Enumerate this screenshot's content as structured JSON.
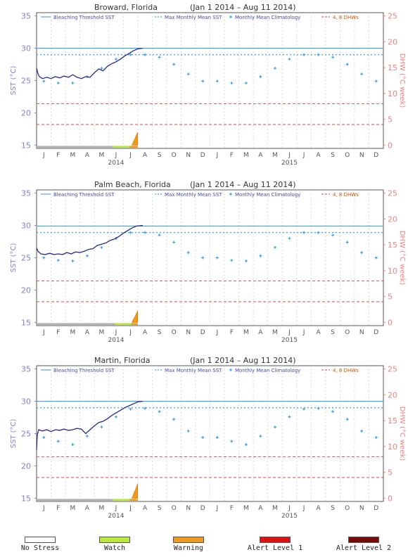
{
  "chart_data": [
    {
      "type": "line",
      "title": "Broward, Florida",
      "date_range": "(Jan 1 2014 – Aug 11 2014)",
      "ylabel": "SST (°C)",
      "ylabel_right": "DHW (°C week)",
      "ylim": [
        14.5,
        35.5
      ],
      "yticks": [
        15,
        20,
        25,
        30,
        35
      ],
      "y2lim": [
        0,
        25
      ],
      "y2ticks": [
        0,
        5,
        10,
        15,
        20,
        25
      ],
      "month_labels": [
        "J",
        "F",
        "M",
        "A",
        "M",
        "J",
        "J",
        "A",
        "S",
        "O",
        "N",
        "D",
        "J",
        "F",
        "M",
        "A",
        "M",
        "J",
        "J",
        "A",
        "S",
        "O",
        "N",
        "D"
      ],
      "year_labels": [
        "2014",
        "2015"
      ],
      "legend": [
        "Bleaching Threshold SST",
        "Max Monthly Mean SST",
        "Monthly Mean Climatology",
        "4, 8 DHWs"
      ],
      "bleaching_threshold": 30.0,
      "max_monthly_mean": 29.0,
      "dhw_lines": [
        4,
        8
      ],
      "climatology": [
        24.9,
        24.6,
        24.6,
        25.6,
        26.9,
        28.3,
        29.0,
        29.0,
        28.6,
        27.5,
        26.0,
        24.9,
        24.9,
        24.6,
        24.6,
        25.6,
        26.9,
        28.3,
        29.0,
        29.0,
        28.6,
        27.5,
        26.0,
        24.9
      ],
      "sst_series": {
        "name": "SST",
        "x_month": [
          0.0,
          0.1,
          0.2,
          0.4,
          0.7,
          1.0,
          1.3,
          1.6,
          1.9,
          2.2,
          2.5,
          2.8,
          3.1,
          3.4,
          3.7,
          4.0,
          4.3,
          4.6,
          4.9,
          5.2,
          5.5,
          5.8,
          6.1,
          6.4,
          6.7,
          7.0,
          7.35
        ],
        "values": [
          26.9,
          26.0,
          25.6,
          25.3,
          25.5,
          25.3,
          25.6,
          25.4,
          25.7,
          25.5,
          25.9,
          25.5,
          25.3,
          25.6,
          25.5,
          26.2,
          26.8,
          26.5,
          27.2,
          27.6,
          27.9,
          28.3,
          28.8,
          29.2,
          29.6,
          29.9,
          30.0
        ]
      },
      "stress_bar": [
        {
          "status": "No Stress",
          "start_month": 0.0,
          "end_month": 5.3
        },
        {
          "status": "Watch",
          "start_month": 5.3,
          "end_month": 6.45
        },
        {
          "status": "Warning",
          "start_month": 6.45,
          "end_month": 7.0
        }
      ],
      "dhw_peak": 2.5
    },
    {
      "type": "line",
      "title": "Palm Beach, Florida",
      "date_range": "(Jan 1 2014 – Aug 11 2014)",
      "ylabel": "SST (°C)",
      "ylabel_right": "DHW (°C week)",
      "ylim": [
        14.5,
        35.5
      ],
      "yticks": [
        15,
        20,
        25,
        30,
        35
      ],
      "y2lim": [
        0,
        25
      ],
      "y2ticks": [
        0,
        5,
        10,
        15,
        20,
        25
      ],
      "month_labels": [
        "J",
        "F",
        "M",
        "A",
        "M",
        "J",
        "J",
        "A",
        "S",
        "O",
        "N",
        "D",
        "J",
        "F",
        "M",
        "A",
        "M",
        "J",
        "J",
        "A",
        "S",
        "O",
        "N",
        "D"
      ],
      "year_labels": [
        "2014",
        "2015"
      ],
      "legend": [
        "Bleaching Threshold SST",
        "Max Monthly Mean SST",
        "Monthly Mean Climatology",
        "4, 8 DHWs"
      ],
      "bleaching_threshold": 29.9,
      "max_monthly_mean": 28.9,
      "dhw_lines": [
        4,
        8
      ],
      "climatology": [
        25.0,
        24.6,
        24.5,
        25.3,
        26.6,
        28.0,
        28.9,
        28.9,
        28.5,
        27.4,
        25.8,
        25.0,
        25.0,
        24.6,
        24.5,
        25.3,
        26.6,
        28.0,
        28.9,
        28.9,
        28.5,
        27.4,
        25.8,
        25.0
      ],
      "sst_series": {
        "name": "SST",
        "x_month": [
          0.0,
          0.1,
          0.3,
          0.6,
          0.9,
          1.2,
          1.5,
          1.8,
          2.1,
          2.4,
          2.7,
          3.0,
          3.3,
          3.6,
          3.9,
          4.2,
          4.5,
          4.8,
          5.1,
          5.4,
          5.7,
          6.0,
          6.3,
          6.6,
          6.9,
          7.35
        ],
        "values": [
          26.5,
          26.0,
          25.6,
          25.5,
          25.7,
          25.5,
          25.6,
          25.5,
          25.8,
          25.6,
          25.9,
          25.8,
          26.0,
          26.3,
          26.4,
          26.9,
          27.1,
          27.3,
          27.7,
          27.9,
          28.3,
          28.8,
          29.2,
          29.6,
          29.9,
          30.0
        ]
      },
      "stress_bar": [
        {
          "status": "No Stress",
          "start_month": 0.0,
          "end_month": 5.4
        },
        {
          "status": "Watch",
          "start_month": 5.4,
          "end_month": 6.55
        },
        {
          "status": "Warning",
          "start_month": 6.55,
          "end_month": 7.0
        }
      ],
      "dhw_peak": 2.2
    },
    {
      "type": "line",
      "title": "Martin, Florida",
      "date_range": "(Jan 1 2014 – Aug 11 2014)",
      "ylabel": "SST (°C)",
      "ylabel_right": "DHW (°C week)",
      "ylim": [
        14.5,
        35.5
      ],
      "yticks": [
        15,
        20,
        25,
        30,
        35
      ],
      "y2lim": [
        0,
        25
      ],
      "y2ticks": [
        0,
        5,
        10,
        15,
        20,
        25
      ],
      "month_labels": [
        "J",
        "F",
        "M",
        "A",
        "M",
        "J",
        "J",
        "A",
        "S",
        "O",
        "N",
        "D",
        "J",
        "F",
        "M",
        "A",
        "M",
        "J",
        "J",
        "A",
        "S",
        "O",
        "N",
        "D"
      ],
      "year_labels": [
        "2014",
        "2015"
      ],
      "legend": [
        "Bleaching Threshold SST",
        "Max Monthly Mean SST",
        "Monthly Mean Climatology",
        "4, 8 DHWs"
      ],
      "bleaching_threshold": 30.0,
      "max_monthly_mean": 29.0,
      "dhw_lines": [
        4,
        8
      ],
      "climatology": [
        24.4,
        23.8,
        23.3,
        24.6,
        26.0,
        27.6,
        28.8,
        28.9,
        28.4,
        27.2,
        25.4,
        24.4,
        24.4,
        23.8,
        23.3,
        24.6,
        26.0,
        27.6,
        28.8,
        28.9,
        28.4,
        27.2,
        25.4,
        24.4
      ],
      "sst_series": {
        "name": "SST",
        "x_month": [
          0.0,
          0.05,
          0.15,
          0.4,
          0.7,
          1.0,
          1.3,
          1.6,
          1.9,
          2.2,
          2.5,
          2.8,
          3.1,
          3.4,
          3.7,
          4.0,
          4.3,
          4.6,
          4.9,
          5.2,
          5.5,
          5.8,
          6.1,
          6.4,
          6.7,
          7.0,
          7.35
        ],
        "values": [
          22.5,
          24.8,
          25.6,
          25.4,
          25.6,
          25.3,
          25.6,
          25.5,
          25.7,
          25.5,
          25.6,
          25.8,
          25.7,
          25.0,
          25.6,
          26.2,
          26.7,
          26.9,
          27.3,
          27.8,
          28.2,
          28.6,
          29.0,
          29.3,
          29.6,
          29.9,
          30.0
        ]
      },
      "stress_bar": [
        {
          "status": "No Stress",
          "start_month": 0.0,
          "end_month": 5.3
        },
        {
          "status": "Watch",
          "start_month": 5.3,
          "end_month": 6.45
        },
        {
          "status": "Warning",
          "start_month": 6.45,
          "end_month": 7.0
        }
      ],
      "dhw_peak": 2.8
    }
  ],
  "stress_legend": [
    {
      "label": "No Stress",
      "color": "#ffffff"
    },
    {
      "label": "Watch",
      "color": "#b8ea3a"
    },
    {
      "label": "Warning",
      "color": "#ee9a1e"
    },
    {
      "label": "Alert Level 1",
      "color": "#e01010"
    },
    {
      "label": "Alert Level 2",
      "color": "#7a0a0a"
    }
  ],
  "colors": {
    "sst_line": "#2a2a8a",
    "climatology": "#3aa0e8",
    "threshold": "#3aa0e8",
    "dhw_lines": "#dd4444",
    "left_axis": "#7f7fd8",
    "right_axis": "#f08080",
    "grid": "#cfcfcf",
    "no_stress_bar": "#b0b0b0"
  }
}
